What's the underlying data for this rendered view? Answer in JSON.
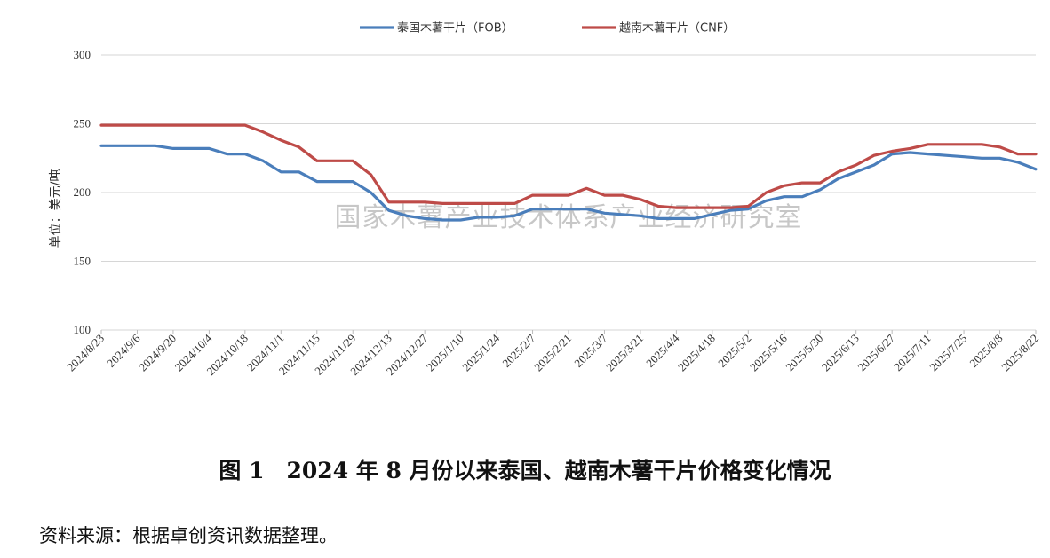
{
  "chart_data": {
    "type": "line",
    "ylabel": "单位：美元/吨",
    "ylim": [
      100,
      300
    ],
    "yticks": [
      100,
      150,
      200,
      250,
      300
    ],
    "grid": "horizontal",
    "legend_position": "top-center",
    "watermark": "国家木薯产业技术体系产业经济研究室",
    "x": [
      "2024/8/23",
      "2024/8/30",
      "2024/9/6",
      "2024/9/13",
      "2024/9/20",
      "2024/9/27",
      "2024/10/4",
      "2024/10/11",
      "2024/10/18",
      "2024/10/25",
      "2024/11/1",
      "2024/11/8",
      "2024/11/15",
      "2024/11/22",
      "2024/11/29",
      "2024/12/6",
      "2024/12/13",
      "2024/12/20",
      "2024/12/27",
      "2025/1/3",
      "2025/1/10",
      "2025/1/17",
      "2025/1/24",
      "2025/1/31",
      "2025/2/7",
      "2025/2/14",
      "2025/2/21",
      "2025/2/28",
      "2025/3/7",
      "2025/3/14",
      "2025/3/21",
      "2025/3/28",
      "2025/4/4",
      "2025/4/11",
      "2025/4/18",
      "2025/4/25",
      "2025/5/2",
      "2025/5/9",
      "2025/5/16",
      "2025/5/23",
      "2025/5/30",
      "2025/6/6",
      "2025/6/13",
      "2025/6/20",
      "2025/6/27",
      "2025/7/4",
      "2025/7/11",
      "2025/7/18",
      "2025/7/25",
      "2025/8/1",
      "2025/8/8",
      "2025/8/15",
      "2025/8/22"
    ],
    "xtick_labels": [
      "2024/8/23",
      "2024/9/6",
      "2024/9/20",
      "2024/10/4",
      "2024/10/18",
      "2024/11/1",
      "2024/11/15",
      "2024/11/29",
      "2024/12/13",
      "2024/12/27",
      "2025/1/10",
      "2025/1/24",
      "2025/2/7",
      "2025/2/21",
      "2025/3/7",
      "2025/3/21",
      "2025/4/4",
      "2025/4/18",
      "2025/5/2",
      "2025/5/16",
      "2025/5/30",
      "2025/6/13",
      "2025/6/27",
      "2025/7/11",
      "2025/7/25",
      "2025/8/8",
      "2025/8/22"
    ],
    "series": [
      {
        "name": "泰国木薯干片（FOB）",
        "color": "#4a7ebb",
        "values": [
          234,
          234,
          234,
          234,
          232,
          232,
          232,
          228,
          228,
          223,
          215,
          215,
          208,
          208,
          208,
          200,
          187,
          183,
          181,
          180,
          180,
          182,
          182,
          183,
          188,
          188,
          188,
          188,
          185,
          184,
          183,
          181,
          181,
          181,
          184,
          187,
          188,
          194,
          197,
          197,
          202,
          210,
          215,
          220,
          228,
          229,
          228,
          227,
          226,
          225,
          225,
          222,
          217
        ]
      },
      {
        "name": "越南木薯干片（CNF）",
        "color": "#be4b48",
        "values": [
          249,
          249,
          249,
          249,
          249,
          249,
          249,
          249,
          249,
          244,
          238,
          233,
          223,
          223,
          223,
          213,
          193,
          193,
          193,
          192,
          192,
          192,
          192,
          192,
          198,
          198,
          198,
          203,
          198,
          198,
          195,
          190,
          189,
          189,
          189,
          189,
          190,
          200,
          205,
          207,
          207,
          215,
          220,
          227,
          230,
          232,
          235,
          235,
          235,
          235,
          233,
          228,
          228
        ]
      }
    ]
  },
  "caption": "图 1　2024 年 8 月份以来泰国、越南木薯干片价格变化情况",
  "source": "资料来源：根据卓创资讯数据整理。"
}
